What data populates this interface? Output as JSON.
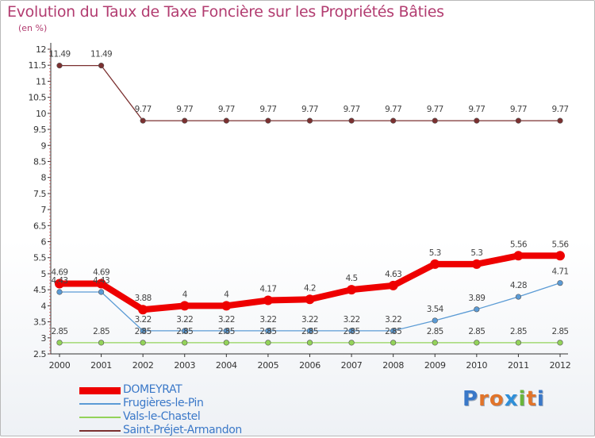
{
  "title": "Evolution du Taux de Taxe Foncière sur les Propriétés Bâties",
  "subtitle": "(en %)",
  "logo": {
    "text": "Proxiti",
    "letters": [
      "P",
      "r",
      "o",
      "x",
      "i",
      "t",
      "i"
    ],
    "colors": [
      "#3a78c8",
      "#e1742a",
      "#e1742a",
      "#2f8fd8",
      "#6ab53b",
      "#e1742a",
      "#3a78c8"
    ]
  },
  "legend": [
    {
      "name": "DOMEYRAT",
      "color": "#ee0000"
    },
    {
      "name": "Frugières-le-Pin",
      "color": "#5b9bd5"
    },
    {
      "name": "Vals-le-Chastel",
      "color": "#93d35a"
    },
    {
      "name": "Saint-Préjet-Armandon",
      "color": "#7b3030"
    }
  ],
  "chart_data": {
    "type": "line",
    "title": "Evolution du Taux de Taxe Foncière sur les Propriétés Bâties",
    "ylabel": "(en %)",
    "xlabel": "",
    "x": [
      "2000",
      "2001",
      "2002",
      "2003",
      "2004",
      "2005",
      "2006",
      "2007",
      "2008",
      "2009",
      "2010",
      "2011",
      "2012"
    ],
    "ylim": [
      2.5,
      12
    ],
    "y_ticks": [
      "2.5",
      "3",
      "3.5",
      "4",
      "4.5",
      "5",
      "5.5",
      "6",
      "6.5",
      "7",
      "7.5",
      "8",
      "8.5",
      "9",
      "9.5",
      "10",
      "10.5",
      "11",
      "11.5",
      "12"
    ],
    "grid": false,
    "legend_position": "bottom-left",
    "series": [
      {
        "name": "DOMEYRAT",
        "color": "#ee0000",
        "values": [
          4.69,
          4.69,
          3.88,
          4,
          4,
          4.17,
          4.2,
          4.5,
          4.63,
          5.3,
          5.3,
          5.56,
          5.56
        ],
        "labels": [
          "4.69",
          "4.69",
          "3.88",
          "4",
          "4",
          "4.17",
          "4.2",
          "4.5",
          "4.63",
          "5.3",
          "5.3",
          "5.56",
          "5.56"
        ]
      },
      {
        "name": "Frugières-le-Pin",
        "color": "#5b9bd5",
        "values": [
          4.43,
          4.43,
          3.22,
          3.22,
          3.22,
          3.22,
          3.22,
          3.22,
          3.22,
          3.54,
          3.89,
          4.28,
          4.71
        ],
        "labels": [
          "4.43",
          "4.43",
          "3.22",
          "3.22",
          "3.22",
          "3.22",
          "3.22",
          "3.22",
          "3.22",
          "3.54",
          "3.89",
          "4.28",
          "4.71"
        ]
      },
      {
        "name": "Vals-le-Chastel",
        "color": "#93d35a",
        "values": [
          2.85,
          2.85,
          2.85,
          2.85,
          2.85,
          2.85,
          2.85,
          2.85,
          2.85,
          2.85,
          2.85,
          2.85,
          2.85
        ],
        "labels": [
          "2.85",
          "2.85",
          "2.85",
          "2.85",
          "2.85",
          "2.85",
          "2.85",
          "2.85",
          "2.85",
          "2.85",
          "2.85",
          "2.85",
          "2.85"
        ]
      },
      {
        "name": "Saint-Préjet-Armandon",
        "color": "#7b3030",
        "values": [
          11.49,
          11.49,
          9.77,
          9.77,
          9.77,
          9.77,
          9.77,
          9.77,
          9.77,
          9.77,
          9.77,
          9.77,
          9.77
        ],
        "labels": [
          "11.49",
          "11.49",
          "9.77",
          "9.77",
          "9.77",
          "9.77",
          "9.77",
          "9.77",
          "9.77",
          "9.77",
          "9.77",
          "9.77",
          "9.77"
        ]
      }
    ]
  }
}
